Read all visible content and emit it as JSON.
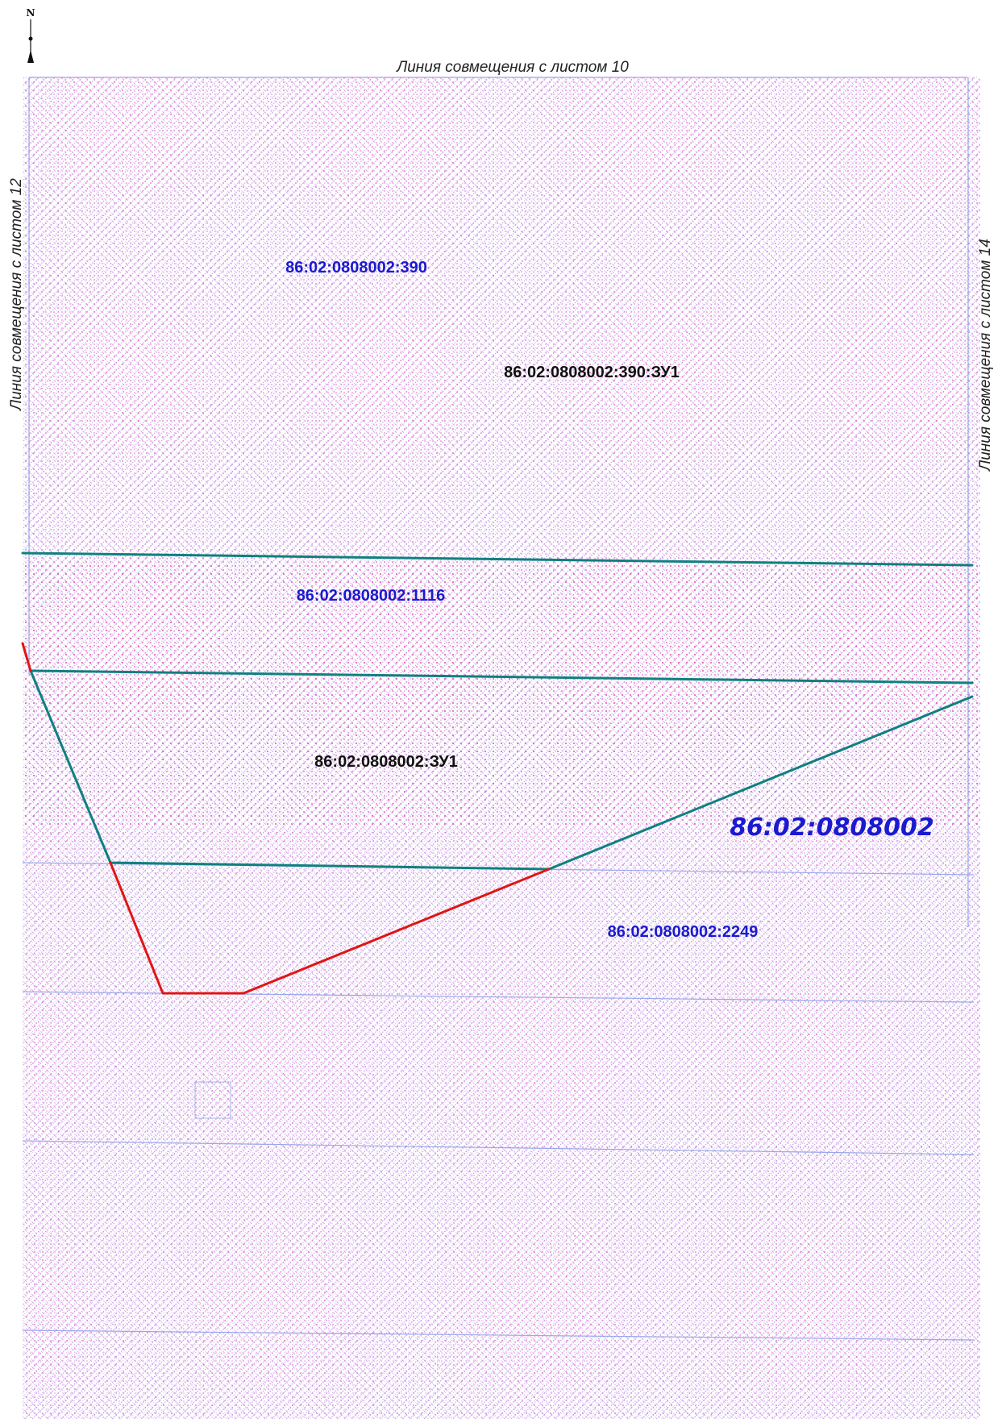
{
  "map": {
    "north_arrow": {
      "letter": "N",
      "icon": "north-arrow-icon"
    },
    "match_lines": {
      "top": "Линия совмещения с листом 10",
      "left": "Линия совмещения с листом 12",
      "right": "Линия совмещения с листом 14"
    },
    "parcels": {
      "p390": "86:02:0808002:390",
      "p390_zu1": "86:02:0808002:390:ЗУ1",
      "p1116": "86:02:0808002:1116",
      "p_zu1": "86:02:0808002:ЗУ1",
      "p2249": "86:02:0808002:2249"
    },
    "quarter": "86:02:0808002",
    "colors": {
      "existing_boundary": "#0f8080",
      "new_boundary": "#e01515",
      "parcel_number": "#1a1ad0",
      "new_parcel_number": "#111111",
      "quarter_number": "#1a1ad0",
      "hatch_diagonal": "#b070e0",
      "hatch_dots": "#e040a0",
      "thin_boundary": "#9aa8e8"
    }
  }
}
